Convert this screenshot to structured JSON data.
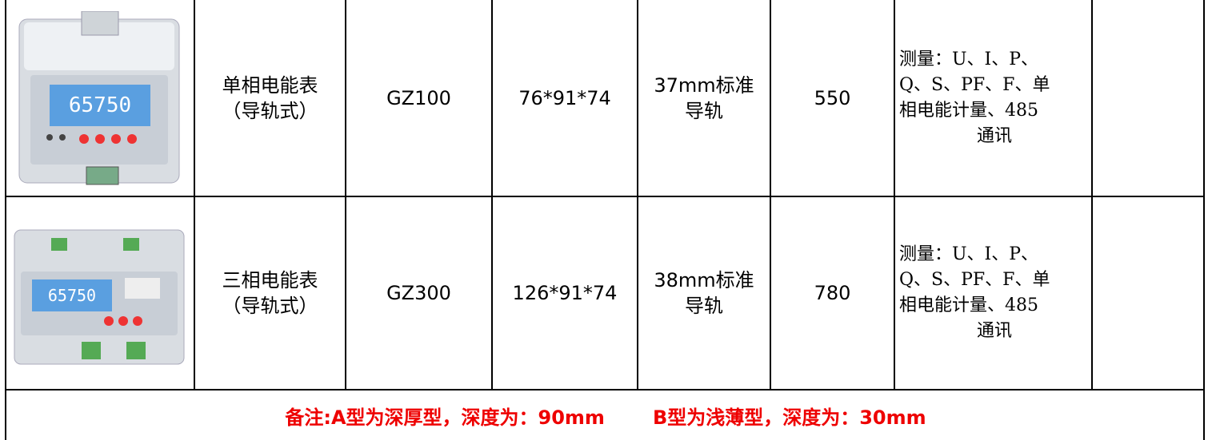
{
  "table": {
    "rows": [
      {
        "name": [
          "单相电能表",
          "（导轨式）"
        ],
        "model": "GZ100",
        "size": "76*91*74",
        "rail": [
          "37mm标准",
          "导轨"
        ],
        "price": "550",
        "function": [
          "测量：U、I、P、",
          "Q、S、PF、F、单",
          "相电能计量、485",
          "通讯"
        ]
      },
      {
        "name": [
          "三相电能表",
          "（导轨式）"
        ],
        "model": "GZ300",
        "size": "126*91*74",
        "rail": [
          "38mm标准",
          "导轨"
        ],
        "price": "780",
        "function": [
          "测量：U、I、P、",
          "Q、S、PF、F、单",
          "相电能计量、485",
          "通讯"
        ]
      }
    ],
    "note": [
      "备注:A型为深厚型，深度为：90mm",
      "B型为浅薄型，深度为：30mm"
    ]
  }
}
